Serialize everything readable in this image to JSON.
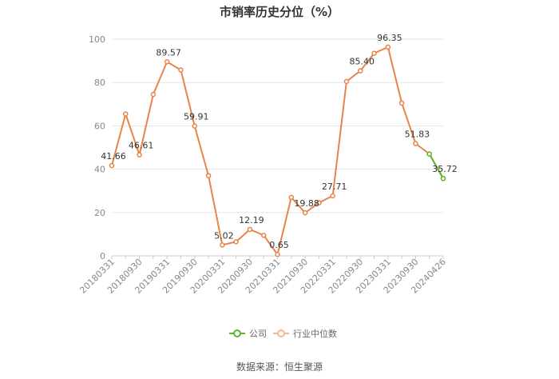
{
  "chart_data": {
    "type": "line",
    "title": "市销率历史分位（%）",
    "xlabel": "",
    "ylabel": "",
    "ylim": [
      0,
      100
    ],
    "yticks": [
      0,
      20,
      40,
      60,
      80,
      100
    ],
    "grid": true,
    "legend_position": "bottom",
    "x": [
      "20180331",
      "20180630",
      "20180930",
      "20181231",
      "20190331",
      "20190630",
      "20190930",
      "20191231",
      "20200331",
      "20200630",
      "20200930",
      "20201231",
      "20210331",
      "20210630",
      "20210930",
      "20211231",
      "20220331",
      "20220630",
      "20220930",
      "20221231",
      "20230331",
      "20230630",
      "20230930",
      "20231231",
      "20240426"
    ],
    "x_tick_labels": [
      "20180331",
      "20180930",
      "20190331",
      "20190930",
      "20200331",
      "20200930",
      "20210331",
      "20210930",
      "20220331",
      "20220930",
      "20230331",
      "20230930",
      "20240426"
    ],
    "series": [
      {
        "name": "公司",
        "color": "#5bb52f",
        "values": [
          null,
          null,
          null,
          null,
          null,
          null,
          null,
          null,
          null,
          null,
          null,
          null,
          null,
          null,
          null,
          null,
          null,
          null,
          null,
          null,
          null,
          null,
          null,
          47.0,
          35.72
        ]
      },
      {
        "name": "行业中位数",
        "color": "#e8844a",
        "values": [
          41.66,
          65.5,
          46.61,
          74.5,
          89.57,
          85.8,
          59.91,
          37.0,
          5.02,
          6.5,
          12.19,
          9.5,
          0.65,
          27.0,
          19.88,
          24.5,
          27.71,
          80.5,
          85.4,
          93.5,
          96.35,
          70.5,
          51.83,
          47.0,
          35.72
        ]
      }
    ],
    "data_labels": [
      {
        "index": 0,
        "text": "41.66"
      },
      {
        "index": 2,
        "text": "46.61"
      },
      {
        "index": 4,
        "text": "89.57"
      },
      {
        "index": 6,
        "text": "59.91"
      },
      {
        "index": 8,
        "text": "5.02"
      },
      {
        "index": 10,
        "text": "12.19"
      },
      {
        "index": 12,
        "text": "0.65"
      },
      {
        "index": 14,
        "text": "19.88"
      },
      {
        "index": 16,
        "text": "27.71"
      },
      {
        "index": 18,
        "text": "85.40"
      },
      {
        "index": 20,
        "text": "96.35"
      },
      {
        "index": 22,
        "text": "51.83"
      },
      {
        "index": 24,
        "text": "35.72"
      }
    ]
  },
  "legend": {
    "company_label": "公司",
    "industry_label": "行业中位数"
  },
  "source_text": "数据来源：恒生聚源"
}
